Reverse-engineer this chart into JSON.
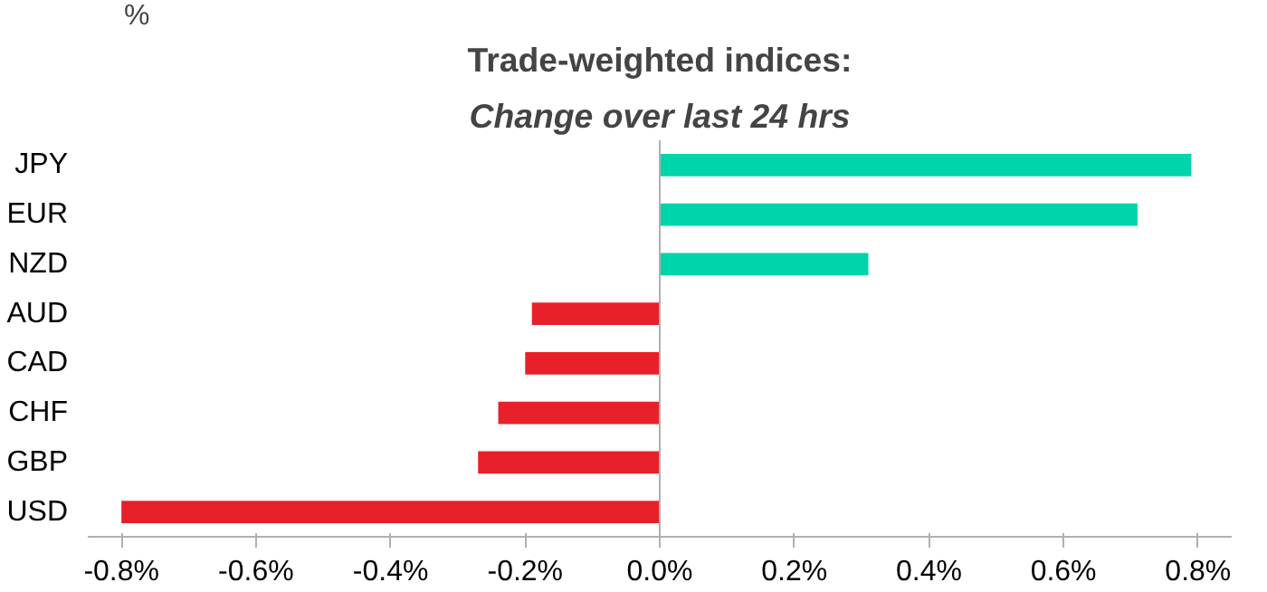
{
  "chart_data": {
    "type": "bar",
    "orientation": "horizontal",
    "title": "Trade-weighted indices:",
    "subtitle": "Change over last 24 hrs",
    "annotations": [
      "%"
    ],
    "categories": [
      "JPY",
      "EUR",
      "NZD",
      "AUD",
      "CAD",
      "CHF",
      "GBP",
      "USD"
    ],
    "values": [
      0.79,
      0.71,
      0.31,
      -0.19,
      -0.2,
      -0.24,
      -0.27,
      -0.8
    ],
    "colors": [
      "#00d4aa",
      "#00d4aa",
      "#00d4aa",
      "#e8202a",
      "#e8202a",
      "#e8202a",
      "#e8202a",
      "#e8202a"
    ],
    "xlim": [
      -0.85,
      0.85
    ],
    "xticks": [
      {
        "value": -0.8,
        "label": "-0.8%"
      },
      {
        "value": -0.6,
        "label": "-0.6%"
      },
      {
        "value": -0.4,
        "label": "-0.4%"
      },
      {
        "value": -0.2,
        "label": "-0.2%"
      },
      {
        "value": 0,
        "label": "0.0%"
      },
      {
        "value": 0.2,
        "label": "0.2%"
      },
      {
        "value": 0.4,
        "label": "0.4%"
      },
      {
        "value": 0.6,
        "label": "0.6%"
      },
      {
        "value": 0.8,
        "label": "0.8%"
      }
    ],
    "ref_lines": [
      {
        "axis": "x",
        "value": 0,
        "color": "#b0b0b0"
      }
    ],
    "grid": false
  }
}
